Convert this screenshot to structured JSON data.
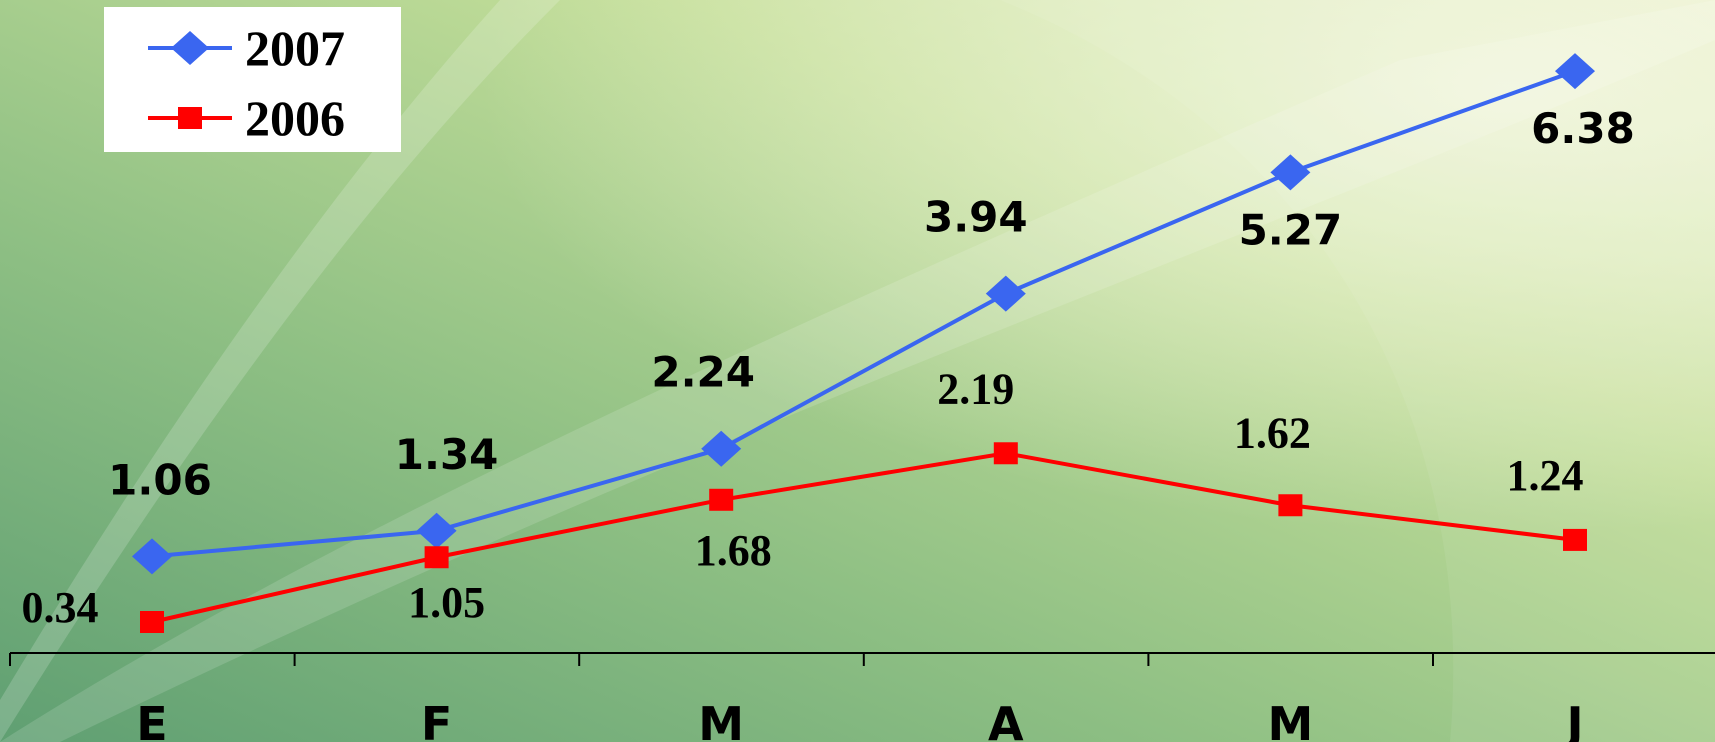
{
  "chart_data": {
    "type": "line",
    "title": "",
    "xlabel": "",
    "ylabel": "",
    "categories": [
      "E",
      "F",
      "M",
      "A",
      "M",
      "J"
    ],
    "ylim": [
      0,
      7
    ],
    "grid": false,
    "legend_position": "top-left",
    "series": [
      {
        "name": "2007",
        "color": "#3a66f0",
        "marker": "diamond",
        "values": [
          1.06,
          1.34,
          2.24,
          3.94,
          5.27,
          6.38
        ],
        "labels": [
          "1.06",
          "1.34",
          "2.24",
          "3.94",
          "5.27",
          "6.38"
        ]
      },
      {
        "name": "2006",
        "color": "#ff0000",
        "marker": "square",
        "values": [
          0.34,
          1.05,
          1.68,
          2.19,
          1.62,
          1.24
        ],
        "labels": [
          "0.34",
          "1.05",
          "1.68",
          "2.19",
          "1.62",
          "1.24"
        ]
      }
    ]
  }
}
